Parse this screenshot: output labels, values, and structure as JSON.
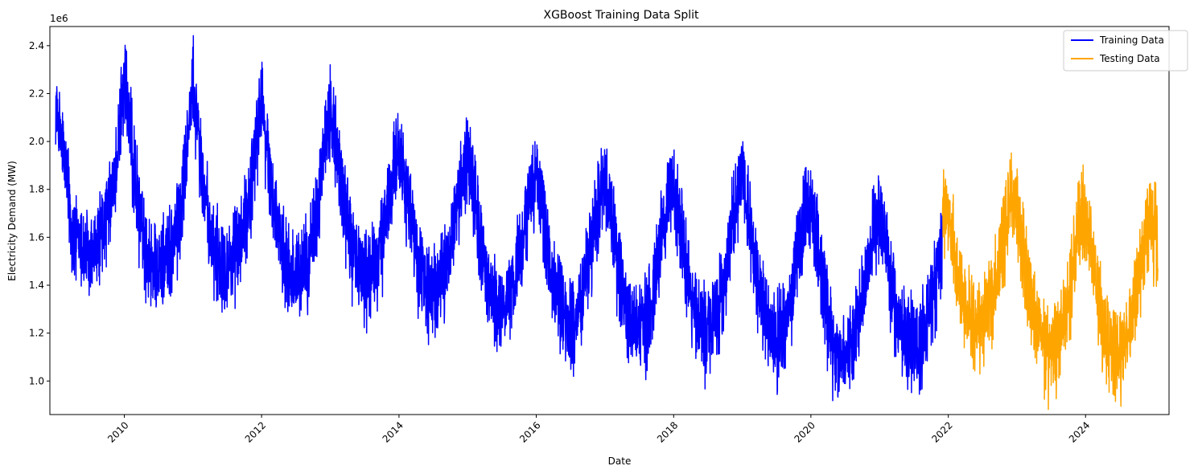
{
  "chart_data": {
    "type": "line",
    "title": "XGBoost Training Data Split",
    "xlabel": "Date",
    "ylabel": "Electricity Demand (MW)",
    "y_offset_label": "1e6",
    "xlim": [
      "2008-12-01",
      "2025-03-20"
    ],
    "ylim": [
      0.86,
      2.48
    ],
    "y_multiplier": 1000000,
    "x_ticks": [
      "2010",
      "2012",
      "2014",
      "2016",
      "2018",
      "2020",
      "2022",
      "2024"
    ],
    "y_ticks": [
      "1.0",
      "1.2",
      "1.4",
      "1.6",
      "1.8",
      "2.0",
      "2.2",
      "2.4"
    ],
    "x_tick_rotation": 45,
    "grid": false,
    "legend_position": "upper right",
    "series": [
      {
        "name": "Training Data",
        "color": "#0000ff",
        "x": [
          "2009-01-01",
          "2009-02-01",
          "2009-03-01",
          "2009-04-01",
          "2009-05-01",
          "2009-06-01",
          "2009-07-01",
          "2009-08-01",
          "2009-09-01",
          "2009-10-01",
          "2009-11-01",
          "2009-12-01",
          "2010-01-01",
          "2010-02-01",
          "2010-03-01",
          "2010-04-01",
          "2010-05-01",
          "2010-06-01",
          "2010-07-01",
          "2010-08-01",
          "2010-09-01",
          "2010-10-01",
          "2010-11-01",
          "2010-12-01",
          "2011-01-01",
          "2011-02-01",
          "2011-03-01",
          "2011-04-01",
          "2011-05-01",
          "2011-06-01",
          "2011-07-01",
          "2011-08-01",
          "2011-09-01",
          "2011-10-01",
          "2011-11-01",
          "2011-12-01",
          "2012-01-01",
          "2012-02-01",
          "2012-03-01",
          "2012-04-01",
          "2012-05-01",
          "2012-06-01",
          "2012-07-01",
          "2012-08-01",
          "2012-09-01",
          "2012-10-01",
          "2012-11-01",
          "2012-12-01",
          "2013-01-01",
          "2013-02-01",
          "2013-03-01",
          "2013-04-01",
          "2013-05-01",
          "2013-06-01",
          "2013-07-01",
          "2013-08-01",
          "2013-09-01",
          "2013-10-01",
          "2013-11-01",
          "2013-12-01",
          "2014-01-01",
          "2014-02-01",
          "2014-03-01",
          "2014-04-01",
          "2014-05-01",
          "2014-06-01",
          "2014-07-01",
          "2014-08-01",
          "2014-09-01",
          "2014-10-01",
          "2014-11-01",
          "2014-12-01",
          "2015-01-01",
          "2015-02-01",
          "2015-03-01",
          "2015-04-01",
          "2015-05-01",
          "2015-06-01",
          "2015-07-01",
          "2015-08-01",
          "2015-09-01",
          "2015-10-01",
          "2015-11-01",
          "2015-12-01",
          "2016-01-01",
          "2016-02-01",
          "2016-03-01",
          "2016-04-01",
          "2016-05-01",
          "2016-06-01",
          "2016-07-01",
          "2016-08-01",
          "2016-09-01",
          "2016-10-01",
          "2016-11-01",
          "2016-12-01",
          "2017-01-01",
          "2017-02-01",
          "2017-03-01",
          "2017-04-01",
          "2017-05-01",
          "2017-06-01",
          "2017-07-01",
          "2017-08-01",
          "2017-09-01",
          "2017-10-01",
          "2017-11-01",
          "2017-12-01",
          "2018-01-01",
          "2018-02-01",
          "2018-03-01",
          "2018-04-01",
          "2018-05-01",
          "2018-06-01",
          "2018-07-01",
          "2018-08-01",
          "2018-09-01",
          "2018-10-01",
          "2018-11-01",
          "2018-12-01",
          "2019-01-01",
          "2019-02-01",
          "2019-03-01",
          "2019-04-01",
          "2019-05-01",
          "2019-06-01",
          "2019-07-01",
          "2019-08-01",
          "2019-09-01",
          "2019-10-01",
          "2019-11-01",
          "2019-12-01",
          "2020-01-01",
          "2020-02-01",
          "2020-03-01",
          "2020-04-01",
          "2020-05-01",
          "2020-06-01",
          "2020-07-01",
          "2020-08-01",
          "2020-09-01",
          "2020-10-01",
          "2020-11-01",
          "2020-12-01",
          "2021-01-01",
          "2021-02-01",
          "2021-03-01",
          "2021-04-01",
          "2021-05-01",
          "2021-06-01",
          "2021-07-01",
          "2021-08-01",
          "2021-09-01",
          "2021-10-01",
          "2021-11-01",
          "2021-12-01"
        ],
        "y": [
          2.15,
          2.0,
          1.85,
          1.62,
          1.58,
          1.55,
          1.52,
          1.55,
          1.62,
          1.68,
          1.78,
          2.0,
          2.3,
          2.05,
          1.85,
          1.65,
          1.55,
          1.5,
          1.48,
          1.5,
          1.55,
          1.62,
          1.75,
          2.0,
          2.25,
          2.02,
          1.82,
          1.62,
          1.55,
          1.52,
          1.5,
          1.52,
          1.58,
          1.65,
          1.8,
          2.0,
          2.2,
          1.95,
          1.8,
          1.62,
          1.52,
          1.48,
          1.45,
          1.48,
          1.52,
          1.6,
          1.78,
          1.98,
          2.15,
          1.98,
          1.85,
          1.68,
          1.55,
          1.48,
          1.45,
          1.45,
          1.5,
          1.58,
          1.75,
          1.9,
          1.95,
          1.85,
          1.72,
          1.55,
          1.45,
          1.4,
          1.38,
          1.4,
          1.48,
          1.58,
          1.72,
          1.85,
          1.95,
          1.82,
          1.65,
          1.48,
          1.38,
          1.33,
          1.3,
          1.35,
          1.42,
          1.52,
          1.68,
          1.8,
          1.88,
          1.75,
          1.58,
          1.42,
          1.33,
          1.28,
          1.25,
          1.28,
          1.35,
          1.48,
          1.62,
          1.75,
          1.85,
          1.72,
          1.55,
          1.4,
          1.3,
          1.25,
          1.22,
          1.25,
          1.32,
          1.48,
          1.62,
          1.75,
          1.85,
          1.7,
          1.55,
          1.38,
          1.28,
          1.23,
          1.22,
          1.25,
          1.33,
          1.45,
          1.62,
          1.78,
          1.85,
          1.7,
          1.55,
          1.38,
          1.28,
          1.22,
          1.2,
          1.22,
          1.28,
          1.42,
          1.58,
          1.7,
          1.75,
          1.62,
          1.45,
          1.25,
          1.12,
          1.08,
          1.1,
          1.15,
          1.25,
          1.38,
          1.52,
          1.65,
          1.7,
          1.58,
          1.42,
          1.28,
          1.2,
          1.18,
          1.18,
          1.2,
          1.25,
          1.32,
          1.48,
          1.55
        ]
      },
      {
        "name": "Testing Data",
        "color": "#ffa500",
        "x": [
          "2021-12-01",
          "2022-01-01",
          "2022-02-01",
          "2022-03-01",
          "2022-04-01",
          "2022-05-01",
          "2022-06-01",
          "2022-07-01",
          "2022-08-01",
          "2022-09-01",
          "2022-10-01",
          "2022-11-01",
          "2022-12-01",
          "2023-01-01",
          "2023-02-01",
          "2023-03-01",
          "2023-04-01",
          "2023-05-01",
          "2023-06-01",
          "2023-07-01",
          "2023-08-01",
          "2023-09-01",
          "2023-10-01",
          "2023-11-01",
          "2023-12-01",
          "2024-01-01",
          "2024-02-01",
          "2024-03-01",
          "2024-04-01",
          "2024-05-01",
          "2024-06-01",
          "2024-07-01",
          "2024-08-01",
          "2024-09-01",
          "2024-10-01",
          "2024-11-01",
          "2024-12-01",
          "2025-01-20"
        ],
        "y": [
          1.72,
          1.68,
          1.55,
          1.42,
          1.32,
          1.28,
          1.25,
          1.28,
          1.33,
          1.4,
          1.52,
          1.65,
          1.78,
          1.72,
          1.58,
          1.45,
          1.3,
          1.2,
          1.15,
          1.12,
          1.15,
          1.22,
          1.35,
          1.52,
          1.68,
          1.72,
          1.55,
          1.4,
          1.25,
          1.15,
          1.12,
          1.12,
          1.15,
          1.25,
          1.38,
          1.55,
          1.68,
          1.62
        ]
      }
    ]
  }
}
